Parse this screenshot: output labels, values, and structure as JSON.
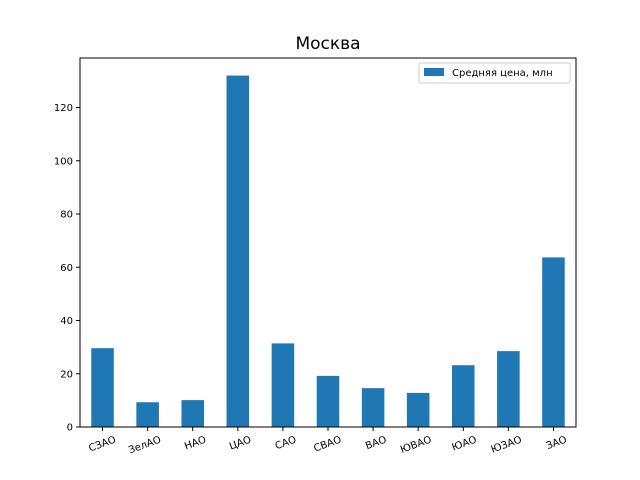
{
  "chart_data": {
    "type": "bar",
    "title": "Москва",
    "xlabel": "",
    "ylabel": "",
    "categories": [
      "СЗАО",
      "ЗелАО",
      "НАО",
      "ЦАО",
      "САО",
      "СВАО",
      "ВАО",
      "ЮВАО",
      "ЮАО",
      "ЮЗАО",
      "ЗАО"
    ],
    "series": [
      {
        "name": "Средняя цена, млн",
        "color": "#1f77b4",
        "values": [
          29.6,
          9.3,
          10.1,
          132.0,
          31.4,
          19.2,
          14.6,
          12.8,
          23.2,
          28.5,
          63.7
        ]
      }
    ],
    "ylim": [
      0,
      138.6
    ],
    "yticks": [
      0,
      20,
      40,
      60,
      80,
      100,
      120
    ],
    "legend_position": "top-right",
    "grid": false
  }
}
